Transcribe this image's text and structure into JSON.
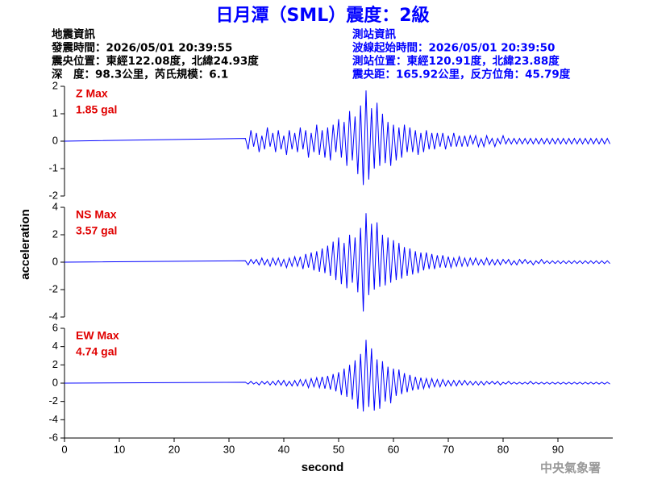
{
  "info": {
    "left": [
      "地震資訊",
      "發震時間：2026/05/01 20:39:55",
      "震央位置：東經122.08度，北緯24.93度",
      "深　度：98.3公里，芮氏規模：6.1"
    ],
    "right": [
      "測站資訊",
      "波線起始時間：2026/05/01 20:39:50",
      "測站位置：東經120.91度，北緯23.88度",
      "震央距：165.92公里，反方位角：45.79度"
    ]
  },
  "footer": "中央氣象署",
  "chart_data": {
    "type": "line",
    "title": "日月潭（SML）震度：2級",
    "xlabel": "second",
    "ylabel": "acceleration",
    "color": "#0000ff",
    "xlim": [
      0,
      100
    ],
    "xticks": [
      0,
      10,
      20,
      30,
      40,
      50,
      60,
      70,
      80,
      90
    ],
    "x": [
      0,
      33,
      33.5,
      34,
      34.5,
      35,
      35.5,
      36,
      36.5,
      37,
      37.5,
      38,
      38.5,
      39,
      39.5,
      40,
      40.5,
      41,
      41.5,
      42,
      42.5,
      43,
      43.5,
      44,
      44.5,
      45,
      45.5,
      46,
      46.5,
      47,
      47.5,
      48,
      48.5,
      49,
      49.5,
      50,
      50.5,
      51,
      51.5,
      52,
      52.5,
      53,
      53.5,
      54,
      54.5,
      55,
      55.5,
      56,
      56.5,
      57,
      57.5,
      58,
      58.5,
      59,
      59.5,
      60,
      60.5,
      61,
      61.5,
      62,
      62.5,
      63,
      63.5,
      64,
      64.5,
      65,
      65.5,
      66,
      66.5,
      67,
      67.5,
      68,
      68.5,
      69,
      69.5,
      70,
      70.5,
      71,
      71.5,
      72,
      72.5,
      73,
      73.5,
      74,
      74.5,
      75,
      75.5,
      76,
      76.5,
      77,
      77.5,
      78,
      78.5,
      79,
      79.5,
      80,
      80.5,
      81,
      81.5,
      82,
      82.5,
      83,
      83.5,
      84,
      84.5,
      85,
      85.5,
      86,
      86.5,
      87,
      87.5,
      88,
      88.5,
      89,
      89.5,
      90,
      90.5,
      91,
      91.5,
      92,
      92.5,
      93,
      93.5,
      94,
      94.5,
      95,
      95.5,
      96,
      96.5,
      97,
      97.5,
      98,
      98.5,
      99,
      99.5
    ],
    "panels": [
      {
        "label": "Z Max",
        "max_label": "1.85 gal",
        "ylim": [
          -2,
          2
        ],
        "yticks": [
          -2,
          -1,
          0,
          1,
          2
        ],
        "values": [
          0,
          0.1,
          -0.3,
          0.4,
          -0.2,
          0.3,
          -0.4,
          0.2,
          -0.3,
          0.5,
          -0.2,
          0.3,
          -0.4,
          0.4,
          -0.3,
          0.2,
          -0.5,
          0.4,
          -0.3,
          0.3,
          -0.4,
          0.5,
          -0.3,
          0.4,
          -0.6,
          0.3,
          -0.4,
          0.6,
          -0.5,
          0.4,
          -0.6,
          0.5,
          -0.7,
          0.6,
          -0.4,
          0.8,
          -0.6,
          0.7,
          -0.9,
          1.1,
          -0.7,
          0.9,
          -1.2,
          1.3,
          -1.6,
          1.85,
          -1.4,
          1.2,
          -1.0,
          1.4,
          -0.9,
          1.0,
          -0.8,
          0.7,
          -0.9,
          0.6,
          -0.7,
          0.5,
          -0.6,
          0.6,
          -0.4,
          0.5,
          -0.4,
          0.4,
          -0.5,
          0.3,
          -0.4,
          0.4,
          -0.3,
          0.3,
          -0.3,
          0.3,
          -0.2,
          0.3,
          -0.3,
          0.2,
          -0.2,
          0.3,
          -0.2,
          0.2,
          -0.2,
          0.2,
          -0.2,
          0.2,
          -0.1,
          0.2,
          -0.2,
          0.1,
          -0.2,
          0.2,
          -0.1,
          0.1,
          -0.2,
          0.1,
          -0.1,
          0.2,
          -0.1,
          0.1,
          -0.1,
          0.1,
          -0.1,
          0.1,
          -0.1,
          0.1,
          -0.1,
          0.1,
          -0.1,
          0.1,
          -0.1,
          0.1,
          -0.1,
          0.1,
          -0.1,
          0.1,
          -0.1,
          0.1,
          -0.1,
          0.1,
          -0.1,
          0.1,
          -0.1,
          0.1,
          -0.1,
          0.1,
          -0.1,
          0.1,
          -0.1,
          0.1,
          -0.1,
          0.1,
          -0.1,
          0.1,
          -0.1,
          0.1,
          -0.1
        ]
      },
      {
        "label": "NS Max",
        "max_label": "3.57 gal",
        "ylim": [
          -4,
          4
        ],
        "yticks": [
          -4,
          -2,
          0,
          2,
          4
        ],
        "values": [
          0,
          0.1,
          -0.2,
          0.2,
          -0.1,
          0.2,
          -0.2,
          0.3,
          -0.2,
          0.2,
          -0.3,
          0.3,
          -0.2,
          0.3,
          -0.3,
          0.2,
          -0.4,
          0.3,
          -0.3,
          0.4,
          -0.3,
          0.4,
          -0.5,
          0.6,
          -0.4,
          0.7,
          -0.6,
          0.8,
          -0.7,
          1.0,
          -0.8,
          1.2,
          -1.0,
          1.5,
          -1.3,
          1.8,
          -1.6,
          1.4,
          -1.9,
          2.0,
          -1.5,
          1.8,
          -2.2,
          2.5,
          -3.6,
          3.57,
          -2.4,
          2.8,
          -2.0,
          2.9,
          -1.8,
          2.0,
          -1.7,
          1.8,
          -1.5,
          1.6,
          -1.3,
          1.4,
          -1.2,
          1.1,
          -1.0,
          1.0,
          -0.9,
          0.8,
          -0.8,
          0.7,
          -0.6,
          0.7,
          -0.5,
          0.6,
          -0.5,
          0.5,
          -0.4,
          0.5,
          -0.4,
          0.4,
          -0.4,
          0.3,
          -0.3,
          0.4,
          -0.3,
          0.3,
          -0.3,
          0.3,
          -0.2,
          0.3,
          -0.2,
          0.2,
          -0.2,
          0.3,
          -0.2,
          0.2,
          -0.2,
          0.2,
          -0.2,
          0.2,
          -0.1,
          0.2,
          -0.2,
          0.1,
          -0.2,
          0.2,
          -0.1,
          0.2,
          -0.1,
          0.1,
          -0.2,
          0.1,
          -0.1,
          0.2,
          -0.1,
          0.1,
          -0.1,
          0.1,
          -0.1,
          0.1,
          -0.1,
          0.1,
          -0.1,
          0.1,
          -0.1,
          0.1,
          -0.1,
          0.1,
          -0.1,
          0.1,
          -0.1,
          0.1,
          -0.1,
          0.1,
          -0.1,
          0.1,
          -0.1,
          0.1,
          -0.1
        ]
      },
      {
        "label": "EW Max",
        "max_label": "4.74 gal",
        "ylim": [
          -6,
          6
        ],
        "yticks": [
          -6,
          -4,
          -2,
          0,
          2,
          4,
          6
        ],
        "values": [
          0,
          0.1,
          -0.1,
          0.2,
          -0.1,
          0.1,
          -0.2,
          0.2,
          -0.1,
          0.2,
          -0.2,
          0.2,
          -0.2,
          0.3,
          -0.2,
          0.3,
          -0.3,
          0.2,
          -0.3,
          0.3,
          -0.3,
          0.4,
          -0.3,
          0.4,
          -0.5,
          0.5,
          -0.4,
          0.6,
          -0.5,
          0.7,
          -0.6,
          0.8,
          -0.7,
          1.0,
          -0.9,
          1.2,
          -1.3,
          1.6,
          -1.5,
          2.0,
          -1.8,
          2.5,
          -2.8,
          3.2,
          -3.1,
          4.74,
          -2.6,
          3.8,
          -3.0,
          2.6,
          -2.8,
          2.4,
          -2.0,
          1.8,
          -2.2,
          1.6,
          -1.4,
          1.5,
          -1.2,
          1.1,
          -1.0,
          0.9,
          -0.8,
          0.7,
          -0.7,
          0.6,
          -0.6,
          0.5,
          -0.5,
          0.5,
          -0.4,
          0.4,
          -0.4,
          0.4,
          -0.3,
          0.3,
          -0.3,
          0.3,
          -0.3,
          0.3,
          -0.2,
          0.3,
          -0.2,
          0.2,
          -0.2,
          0.2,
          -0.2,
          0.2,
          -0.2,
          0.2,
          -0.1,
          0.2,
          -0.1,
          0.2,
          -0.2,
          0.1,
          -0.1,
          0.2,
          -0.1,
          0.1,
          -0.1,
          0.1,
          -0.1,
          0.1,
          -0.1,
          0.2,
          -0.1,
          0.1,
          -0.1,
          0.1,
          -0.1,
          0.1,
          -0.1,
          0.1,
          -0.1,
          0.1,
          -0.1,
          0.1,
          -0.1,
          0.1,
          -0.1,
          0.1,
          -0.1,
          0.1,
          -0.1,
          0.1,
          -0.1,
          0.1,
          -0.1,
          0.1,
          -0.1,
          0.1,
          -0.1,
          0.1,
          -0.1
        ]
      }
    ]
  }
}
